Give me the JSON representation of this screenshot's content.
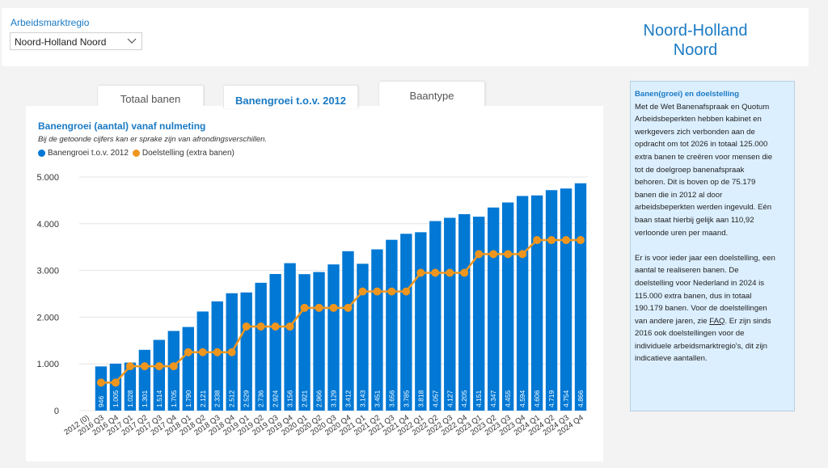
{
  "header": {
    "region_label": "Arbeidsmarktregio",
    "region_selected": "Noord-Holland Noord",
    "region_title_line1": "Noord-Holland",
    "region_title_line2": "Noord"
  },
  "tabs": [
    {
      "label": "Totaal banen",
      "active": false
    },
    {
      "label": "Banengroei t.o.v. 2012",
      "active": true
    },
    {
      "label": "Baantype",
      "active": false
    }
  ],
  "chart_data": {
    "type": "bar",
    "title": "Banengroei (aantal) vanaf nulmeting",
    "subtitle": "Bij de getoonde cijfers kan er sprake zijn van afrondingsverschillen.",
    "categories": [
      "2012 (0)",
      "2016 Q3",
      "2016 Q4",
      "2017 Q1",
      "2017 Q2",
      "2017 Q3",
      "2017 Q4",
      "2018 Q1",
      "2018 Q2",
      "2018 Q3",
      "2018 Q4",
      "2019 Q1",
      "2019 Q2",
      "2019 Q3",
      "2019 Q4",
      "2020 Q1",
      "2020 Q2",
      "2020 Q3",
      "2020 Q4",
      "2021 Q1",
      "2021 Q2",
      "2021 Q3",
      "2021 Q4",
      "2022 Q1",
      "2022 Q2",
      "2022 Q3",
      "2022 Q4",
      "2023 Q1",
      "2023 Q2",
      "2023 Q3",
      "2023 Q4",
      "2024 Q1",
      "2024 Q2",
      "2024 Q3",
      "2024 Q4"
    ],
    "series": [
      {
        "name": "Banengroei t.o.v. 2012",
        "type": "bar",
        "color": "#0078d4",
        "values": [
          null,
          946,
          1005,
          1028,
          1301,
          1514,
          1705,
          1790,
          2121,
          2338,
          2512,
          2529,
          2736,
          2924,
          3156,
          2921,
          2966,
          3129,
          3412,
          3143,
          3451,
          3656,
          3785,
          3818,
          4057,
          4127,
          4205,
          4151,
          4347,
          4455,
          4594,
          4606,
          4719,
          4754,
          4866
        ],
        "labels": [
          null,
          "946",
          "1.005",
          "1.028",
          "1.301",
          "1.514",
          "1.705",
          "1.790",
          "2.121",
          "2.338",
          "2.512",
          "2.529",
          "2.736",
          "2.924",
          "3.156",
          "2.921",
          "2.966",
          "3.129",
          "3.412",
          "3.143",
          "3.451",
          "3.656",
          "3.785",
          "3.818",
          "4.057",
          "4.127",
          "4.205",
          "4.151",
          "4.347",
          "4.455",
          "4.594",
          "4.606",
          "4.719",
          "4.754",
          "4.866"
        ]
      },
      {
        "name": "Doelstelling (extra banen)",
        "type": "line",
        "color": "#f0961e",
        "values": [
          null,
          600,
          600,
          950,
          950,
          950,
          950,
          1250,
          1250,
          1250,
          1250,
          1800,
          1800,
          1800,
          1800,
          2200,
          2200,
          2200,
          2200,
          2550,
          2550,
          2550,
          2550,
          2950,
          2950,
          2950,
          2950,
          3350,
          3350,
          3350,
          3350,
          3650,
          3650,
          3650,
          3650
        ]
      }
    ],
    "ylim": [
      0,
      5000
    ],
    "yticks": [
      "0",
      "1.000",
      "2.000",
      "3.000",
      "4.000",
      "5.000"
    ],
    "ytick_values": [
      0,
      1000,
      2000,
      3000,
      4000,
      5000
    ],
    "grid": true,
    "legend_position": "top-left"
  },
  "info": {
    "title": "Banen(groei) en doelstelling",
    "para1_lines": [
      "Met de Wet Banenafspraak en Quotum",
      "Arbeidsbeperkten hebben kabinet en",
      "werkgevers zich verbonden aan de",
      "opdracht om tot 2026 in totaal 125.000",
      "extra banen te creëren voor mensen die",
      "tot de doelgroep banenafspraak",
      "behoren. Dit is boven op de 75.179",
      "banen die in 2012 al door",
      "arbeidsbeperkten werden ingevuld. Eén",
      "baan staat hierbij gelijk aan 110,92",
      "verloonde uren per maand."
    ],
    "para2_lines": [
      "Er is voor ieder jaar een doelstelling, een",
      "aantal te realiseren banen. De",
      "doelstelling voor Nederland in 2024 is",
      "115.000 extra banen, dus in totaal",
      "190.179  banen. Voor de doelstellingen"
    ],
    "para2_pre_faq": "van andere jaren, zie ",
    "faq": "FAQ",
    "para2_post_faq": ". Er zijn sinds",
    "para2_rest": [
      "2016 ook doelstellingen voor de",
      "individuele arbeidsmarktregio's, dit zijn",
      "indicatieve aantallen."
    ]
  }
}
